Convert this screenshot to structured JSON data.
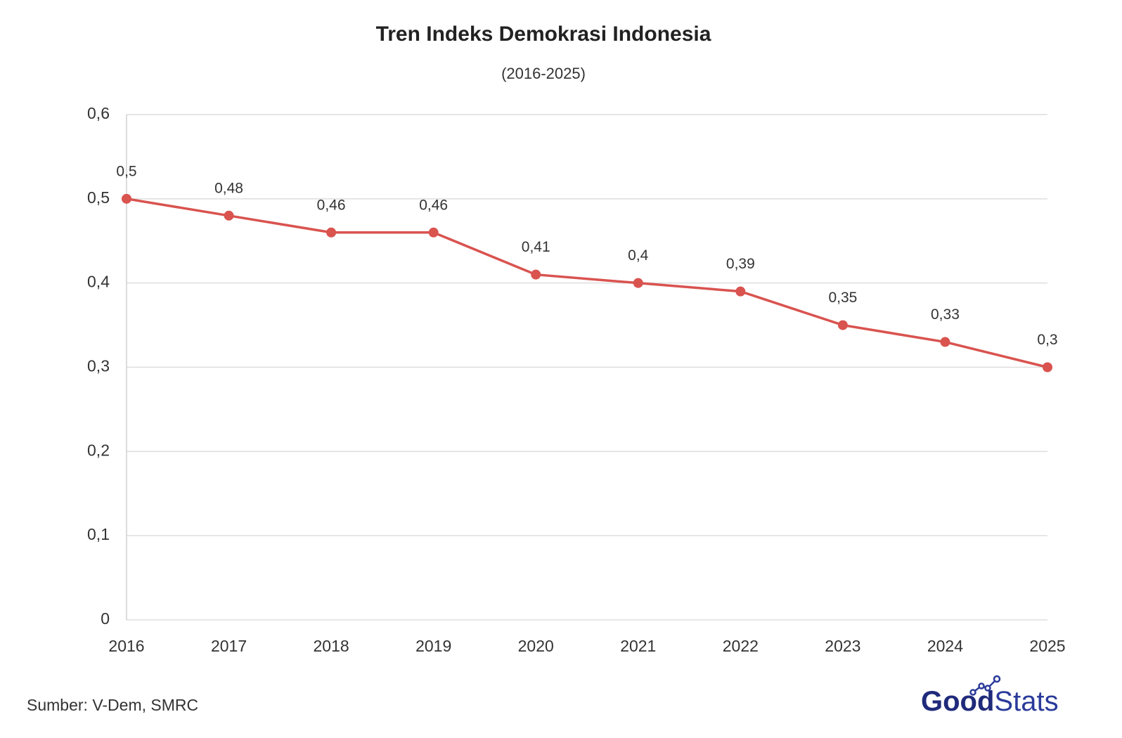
{
  "chart_data": {
    "type": "line",
    "title": "Tren Indeks Demokrasi Indonesia",
    "subtitle": "(2016-2025)",
    "categories": [
      "2016",
      "2017",
      "2018",
      "2019",
      "2020",
      "2021",
      "2022",
      "2023",
      "2024",
      "2025"
    ],
    "values": [
      0.5,
      0.48,
      0.46,
      0.46,
      0.41,
      0.4,
      0.39,
      0.35,
      0.33,
      0.3
    ],
    "value_labels": [
      "0,5",
      "0,48",
      "0,46",
      "0,46",
      "0,41",
      "0,4",
      "0,39",
      "0,35",
      "0,33",
      "0,3"
    ],
    "color": "#d9534f",
    "ylim": [
      0,
      0.6
    ],
    "yticks": [
      0,
      {
        "value": 0.1,
        "label": "0,1"
      },
      {
        "value": 0.2,
        "label": "0,2"
      },
      {
        "value": 0.3,
        "label": "0,3"
      },
      {
        "value": 0.4,
        "label": "0,4"
      },
      {
        "value": 0.5,
        "label": "0,5"
      },
      {
        "value": 0.6,
        "label": "0,6"
      }
    ],
    "grid": true,
    "source": "Sumber: V-Dem, SMRC",
    "brand": [
      "Good",
      "Stats"
    ]
  }
}
